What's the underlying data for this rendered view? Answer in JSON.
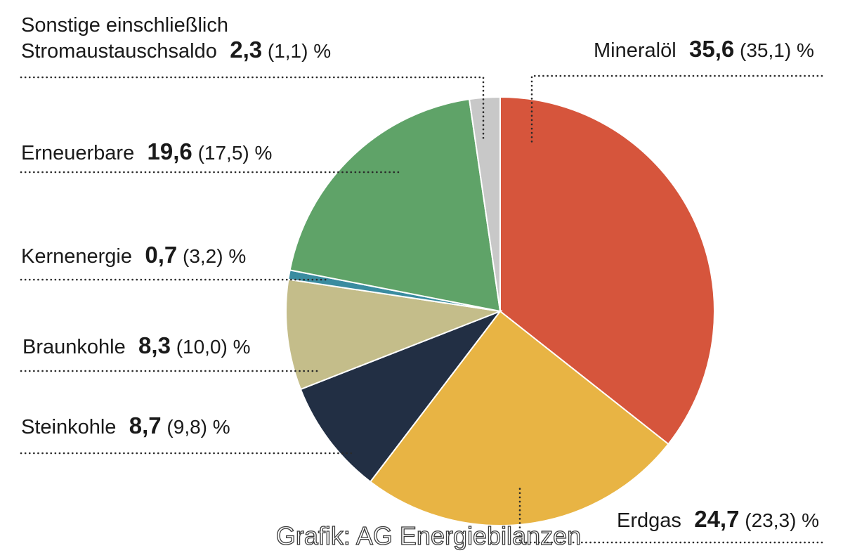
{
  "chart_data": {
    "type": "pie",
    "unit": "%",
    "slices": [
      {
        "label_lines": [
          "Mineralöl"
        ],
        "value": 35.6,
        "value_text": "35,6",
        "previous_text": "(35,1)",
        "color": "#d6553c"
      },
      {
        "label_lines": [
          "Erdgas"
        ],
        "value": 24.7,
        "value_text": "24,7",
        "previous_text": "(23,3)",
        "color": "#e8b444"
      },
      {
        "label_lines": [
          "Steinkohle"
        ],
        "value": 8.7,
        "value_text": "8,7",
        "previous_text": "(9,8)",
        "color": "#222f44"
      },
      {
        "label_lines": [
          "Braunkohle"
        ],
        "value": 8.3,
        "value_text": "8,3",
        "previous_text": "(10,0)",
        "color": "#c4bd8a"
      },
      {
        "label_lines": [
          "Kernenergie"
        ],
        "value": 0.7,
        "value_text": "0,7",
        "previous_text": "(3,2)",
        "color": "#3a8ca0"
      },
      {
        "label_lines": [
          "Erneuerbare"
        ],
        "value": 19.6,
        "value_text": "19,6",
        "previous_text": "(17,5)",
        "color": "#5fa368"
      },
      {
        "label_lines": [
          "Sonstige einschließlich",
          "Stromaustauschsaldo"
        ],
        "value": 2.3,
        "value_text": "2,3",
        "previous_text": "(1,1)",
        "color": "#c8c8c8"
      }
    ]
  },
  "credit": "Grafik: AG Energiebilanzen"
}
